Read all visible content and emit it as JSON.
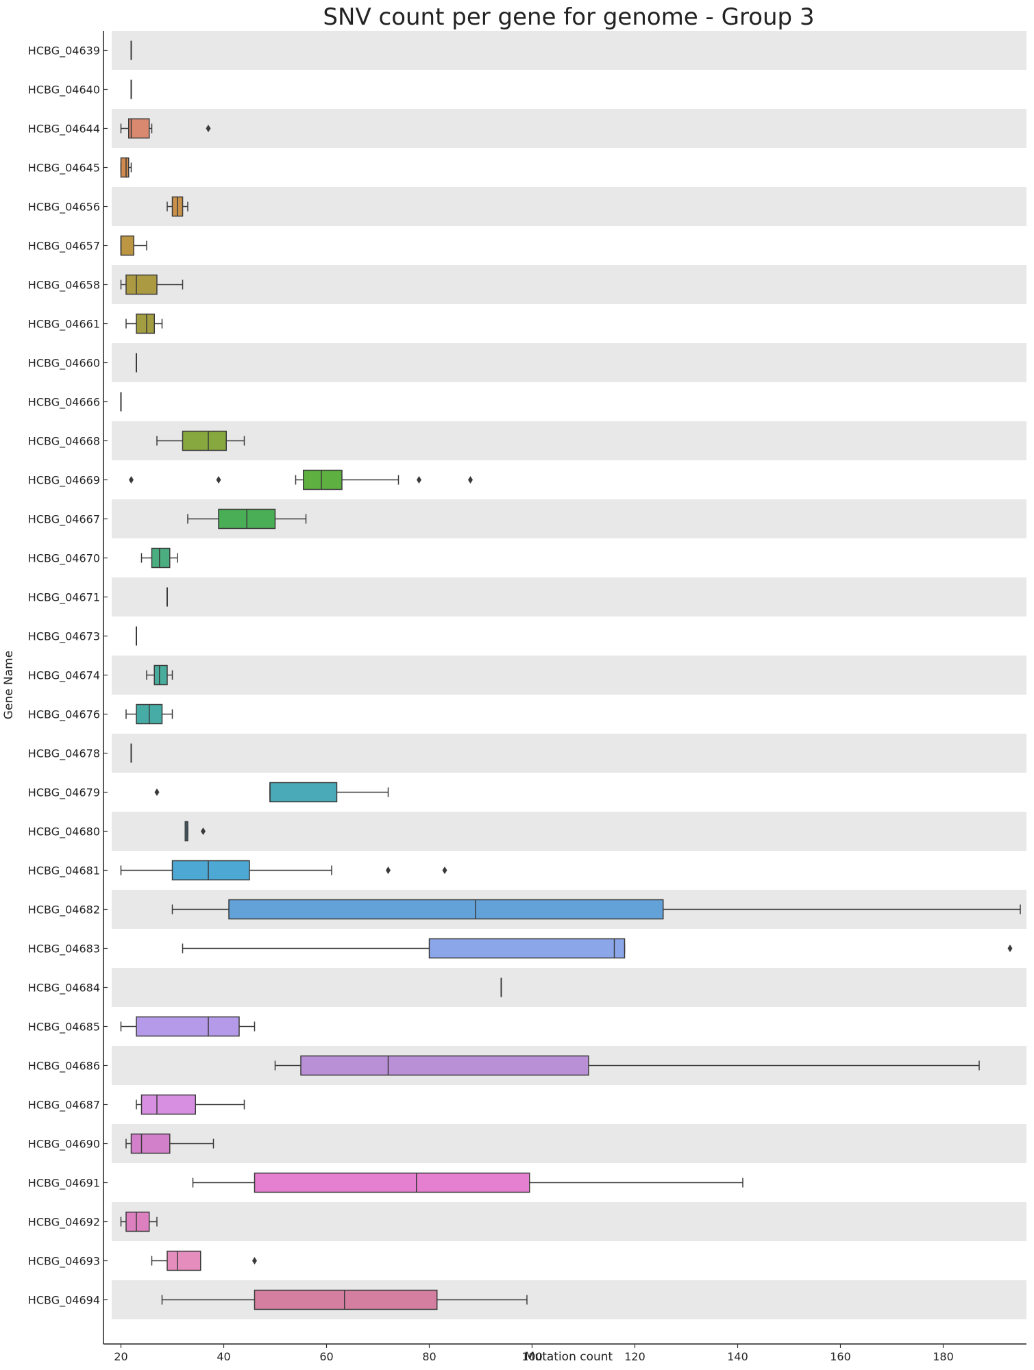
{
  "chart_data": {
    "type": "box",
    "title": "SNV count per gene for genome - Group 3",
    "xlabel": "Mutation count",
    "ylabel": "Gene Name",
    "xlim": [
      18.2,
      196.2
    ],
    "xticks": [
      20,
      40,
      60,
      80,
      100,
      120,
      140,
      160,
      180
    ],
    "orientation": "horizontal",
    "row_shading": "alternating grey bands",
    "genes": [
      {
        "name": "HCBG_04639",
        "color": "#d98b6a",
        "min": 22,
        "q1": 22,
        "median": 22,
        "q3": 22,
        "max": 22,
        "outliers": []
      },
      {
        "name": "HCBG_04640",
        "color": "#d98b6a",
        "min": 22,
        "q1": 22,
        "median": 22,
        "q3": 22,
        "max": 22,
        "outliers": []
      },
      {
        "name": "HCBG_04644",
        "color": "#d9896f",
        "min": 20,
        "q1": 21.5,
        "median": 22,
        "q3": 25.5,
        "max": 26,
        "outliers": [
          37
        ]
      },
      {
        "name": "HCBG_04645",
        "color": "#cf8b4e",
        "min": 20,
        "q1": 20,
        "median": 21,
        "q3": 21.5,
        "max": 22,
        "outliers": []
      },
      {
        "name": "HCBG_04656",
        "color": "#c9914a",
        "min": 29,
        "q1": 30,
        "median": 31,
        "q3": 32,
        "max": 33,
        "outliers": []
      },
      {
        "name": "HCBG_04657",
        "color": "#bd9644",
        "min": 20,
        "q1": 20,
        "median": 20,
        "q3": 22.5,
        "max": 25,
        "outliers": []
      },
      {
        "name": "HCBG_04658",
        "color": "#ac9a43",
        "min": 20,
        "q1": 21,
        "median": 23,
        "q3": 27,
        "max": 32,
        "outliers": []
      },
      {
        "name": "HCBG_04661",
        "color": "#a39d42",
        "min": 21,
        "q1": 23,
        "median": 25,
        "q3": 26.5,
        "max": 28,
        "outliers": []
      },
      {
        "name": "HCBG_04660",
        "color": "#9ea241",
        "min": 23,
        "q1": 23,
        "median": 23,
        "q3": 23,
        "max": 23,
        "outliers": []
      },
      {
        "name": "HCBG_04666",
        "color": "#92a640",
        "min": 20,
        "q1": 20,
        "median": 20,
        "q3": 20,
        "max": 20,
        "outliers": []
      },
      {
        "name": "HCBG_04668",
        "color": "#87a83f",
        "min": 27,
        "q1": 32,
        "median": 37,
        "q3": 40.5,
        "max": 44,
        "outliers": []
      },
      {
        "name": "HCBG_04669",
        "color": "#5eb041",
        "min": 54,
        "q1": 55.5,
        "median": 59,
        "q3": 63,
        "max": 74,
        "outliers": [
          22,
          39,
          78,
          88
        ]
      },
      {
        "name": "HCBG_04667",
        "color": "#4aae56",
        "min": 33,
        "q1": 39,
        "median": 44.5,
        "q3": 50,
        "max": 56,
        "outliers": []
      },
      {
        "name": "HCBG_04670",
        "color": "#4bae80",
        "min": 24,
        "q1": 26,
        "median": 27.5,
        "q3": 29.5,
        "max": 31,
        "outliers": []
      },
      {
        "name": "HCBG_04671",
        "color": "#4bad90",
        "min": 29,
        "q1": 29,
        "median": 29,
        "q3": 29,
        "max": 29,
        "outliers": []
      },
      {
        "name": "HCBG_04673",
        "color": "#4aad98",
        "min": 23,
        "q1": 23,
        "median": 23,
        "q3": 23,
        "max": 23,
        "outliers": []
      },
      {
        "name": "HCBG_04674",
        "color": "#49ad9e",
        "min": 25,
        "q1": 26.5,
        "median": 27.5,
        "q3": 29,
        "max": 30,
        "outliers": []
      },
      {
        "name": "HCBG_04676",
        "color": "#48aca6",
        "min": 21,
        "q1": 23,
        "median": 25.5,
        "q3": 28,
        "max": 30,
        "outliers": []
      },
      {
        "name": "HCBG_04678",
        "color": "#48abad",
        "min": 22,
        "q1": 22,
        "median": 22,
        "q3": 22,
        "max": 22,
        "outliers": []
      },
      {
        "name": "HCBG_04679",
        "color": "#4aaab8",
        "min": 49,
        "q1": 49,
        "median": 49,
        "q3": 62,
        "max": 72,
        "outliers": [
          27
        ]
      },
      {
        "name": "HCBG_04680",
        "color": "#4aa9c0",
        "min": 32.5,
        "q1": 32.5,
        "median": 32.8,
        "q3": 33,
        "max": 33,
        "outliers": [
          36
        ]
      },
      {
        "name": "HCBG_04681",
        "color": "#4ea8d4",
        "min": 20,
        "q1": 30,
        "median": 37,
        "q3": 45,
        "max": 61,
        "outliers": [
          72,
          83
        ]
      },
      {
        "name": "HCBG_04682",
        "color": "#62a2d9",
        "min": 30,
        "q1": 41,
        "median": 89,
        "q3": 125.5,
        "max": 195,
        "outliers": []
      },
      {
        "name": "HCBG_04683",
        "color": "#8ca6ea",
        "min": 32,
        "q1": 80,
        "median": 116,
        "q3": 118,
        "max": 118,
        "outliers": [
          193
        ]
      },
      {
        "name": "HCBG_04684",
        "color": "#9aa1e6",
        "min": 94,
        "q1": 94,
        "median": 94,
        "q3": 94,
        "max": 94,
        "outliers": []
      },
      {
        "name": "HCBG_04685",
        "color": "#b49ae9",
        "min": 20,
        "q1": 23,
        "median": 37,
        "q3": 43,
        "max": 46,
        "outliers": []
      },
      {
        "name": "HCBG_04686",
        "color": "#b98fd6",
        "min": 50,
        "q1": 55,
        "median": 72,
        "q3": 111,
        "max": 187,
        "outliers": []
      },
      {
        "name": "HCBG_04687",
        "color": "#d78fe2",
        "min": 23,
        "q1": 24,
        "median": 27,
        "q3": 34.5,
        "max": 44,
        "outliers": []
      },
      {
        "name": "HCBG_04690",
        "color": "#d380cb",
        "min": 21,
        "q1": 22,
        "median": 24,
        "q3": 29.5,
        "max": 38,
        "outliers": []
      },
      {
        "name": "HCBG_04691",
        "color": "#e57fd0",
        "min": 34,
        "q1": 46,
        "median": 77.5,
        "q3": 99.5,
        "max": 141,
        "outliers": []
      },
      {
        "name": "HCBG_04692",
        "color": "#dd80c0",
        "min": 20,
        "q1": 21,
        "median": 23,
        "q3": 25.5,
        "max": 27,
        "outliers": []
      },
      {
        "name": "HCBG_04693",
        "color": "#e58dbd",
        "min": 26,
        "q1": 29,
        "median": 31,
        "q3": 35.5,
        "max": 35.5,
        "outliers": [
          46
        ]
      },
      {
        "name": "HCBG_04694",
        "color": "#d47fa0",
        "min": 28,
        "q1": 46,
        "median": 63.5,
        "q3": 81.5,
        "max": 99,
        "outliers": []
      }
    ]
  }
}
